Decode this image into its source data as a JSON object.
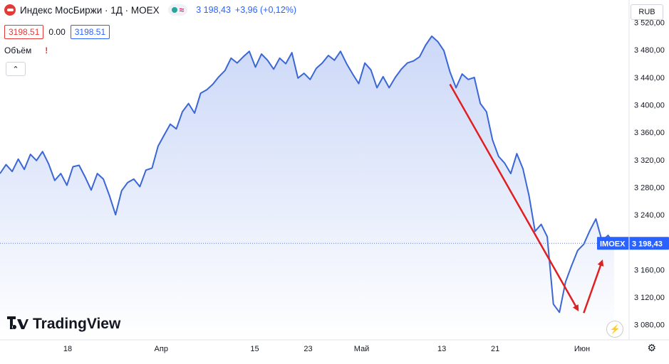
{
  "header": {
    "title": "Индекс МосБиржи · 1Д · MOEX",
    "last_price": "3 198,43",
    "change": "+3,96 (+0,12%)",
    "bid": "3198.51",
    "spread": "0.00",
    "ask": "3198.51",
    "volume_label": "Объём",
    "warning_glyph": "!",
    "currency": "RUB"
  },
  "icons": {
    "logo": "moex-logo-icon",
    "status": "market-status-icon",
    "wave": "delayed-data-icon",
    "collapse": "chevron-up-icon",
    "alert": "lightning-icon",
    "settings": "gear-icon"
  },
  "colors": {
    "line": "#3a66d6",
    "area_top": "#c9d6f7",
    "area_bottom": "#ffffff",
    "arrow": "#e02020",
    "last_price_badge": "#2962ff",
    "bid": "#e53935"
  },
  "brand": {
    "name": "TradingView"
  },
  "last_price_badge": {
    "symbol": "IMOEX",
    "value": "3 198,43"
  },
  "chart_data": {
    "type": "area",
    "symbol": "IMOEX",
    "interval": "1D",
    "y_axis": {
      "range": [
        3060,
        3532
      ],
      "ticks": [
        3080,
        3120,
        3160,
        3200,
        3240,
        3280,
        3320,
        3360,
        3400,
        3440,
        3480,
        3520
      ],
      "tick_labels": [
        "3 080,00",
        "3 120,00",
        "3 160,00",
        "3 200,00",
        "3 240,00",
        "3 280,00",
        "3 320,00",
        "3 360,00",
        "3 400,00",
        "3 440,00",
        "3 480,00",
        "3 520,00"
      ]
    },
    "x_axis": {
      "tick_labels": [
        "18",
        "Апр",
        "15",
        "23",
        "Май",
        "13",
        "21",
        "Июн"
      ],
      "tick_dates": [
        "2024-03-18",
        "2024-04-01",
        "2024-04-15",
        "2024-04-23",
        "2024-05-01",
        "2024-05-13",
        "2024-05-21",
        "2024-06-03"
      ]
    },
    "series": [
      {
        "values": [
          3300,
          3313,
          3303,
          3321,
          3306,
          3328,
          3319,
          3332,
          3314,
          3290,
          3300,
          3283,
          3310,
          3312,
          3295,
          3276,
          3300,
          3292,
          3268,
          3240,
          3275,
          3287,
          3292,
          3281,
          3305,
          3308,
          3340,
          3356,
          3372,
          3365,
          3390,
          3402,
          3388,
          3417,
          3422,
          3430,
          3441,
          3450,
          3468,
          3461,
          3470,
          3478,
          3455,
          3474,
          3465,
          3452,
          3468,
          3460,
          3476,
          3439,
          3446,
          3437,
          3453,
          3461,
          3472,
          3465,
          3478,
          3460,
          3445,
          3431,
          3461,
          3451,
          3425,
          3441,
          3425,
          3440,
          3452,
          3461,
          3464,
          3470,
          3487,
          3500,
          3492,
          3479,
          3448,
          3425,
          3445,
          3437,
          3440,
          3402,
          3390,
          3349,
          3325,
          3315,
          3300,
          3329,
          3307,
          3268,
          3216,
          3226,
          3208,
          3110,
          3098,
          3142,
          3166,
          3188,
          3197,
          3217,
          3234,
          3202,
          3210,
          3198.43
        ],
        "last": 3198.43
      }
    ],
    "annotations": [
      {
        "type": "arrow",
        "direction": "down",
        "from": {
          "x_index": 74,
          "y": 3430
        },
        "to": {
          "x_index": 95,
          "y": 3102
        }
      },
      {
        "type": "arrow",
        "direction": "up",
        "from": {
          "x_index": 96,
          "y": 3097
        },
        "to": {
          "x_index": 99,
          "y": 3172
        }
      }
    ],
    "grid": false,
    "legend": "none"
  }
}
